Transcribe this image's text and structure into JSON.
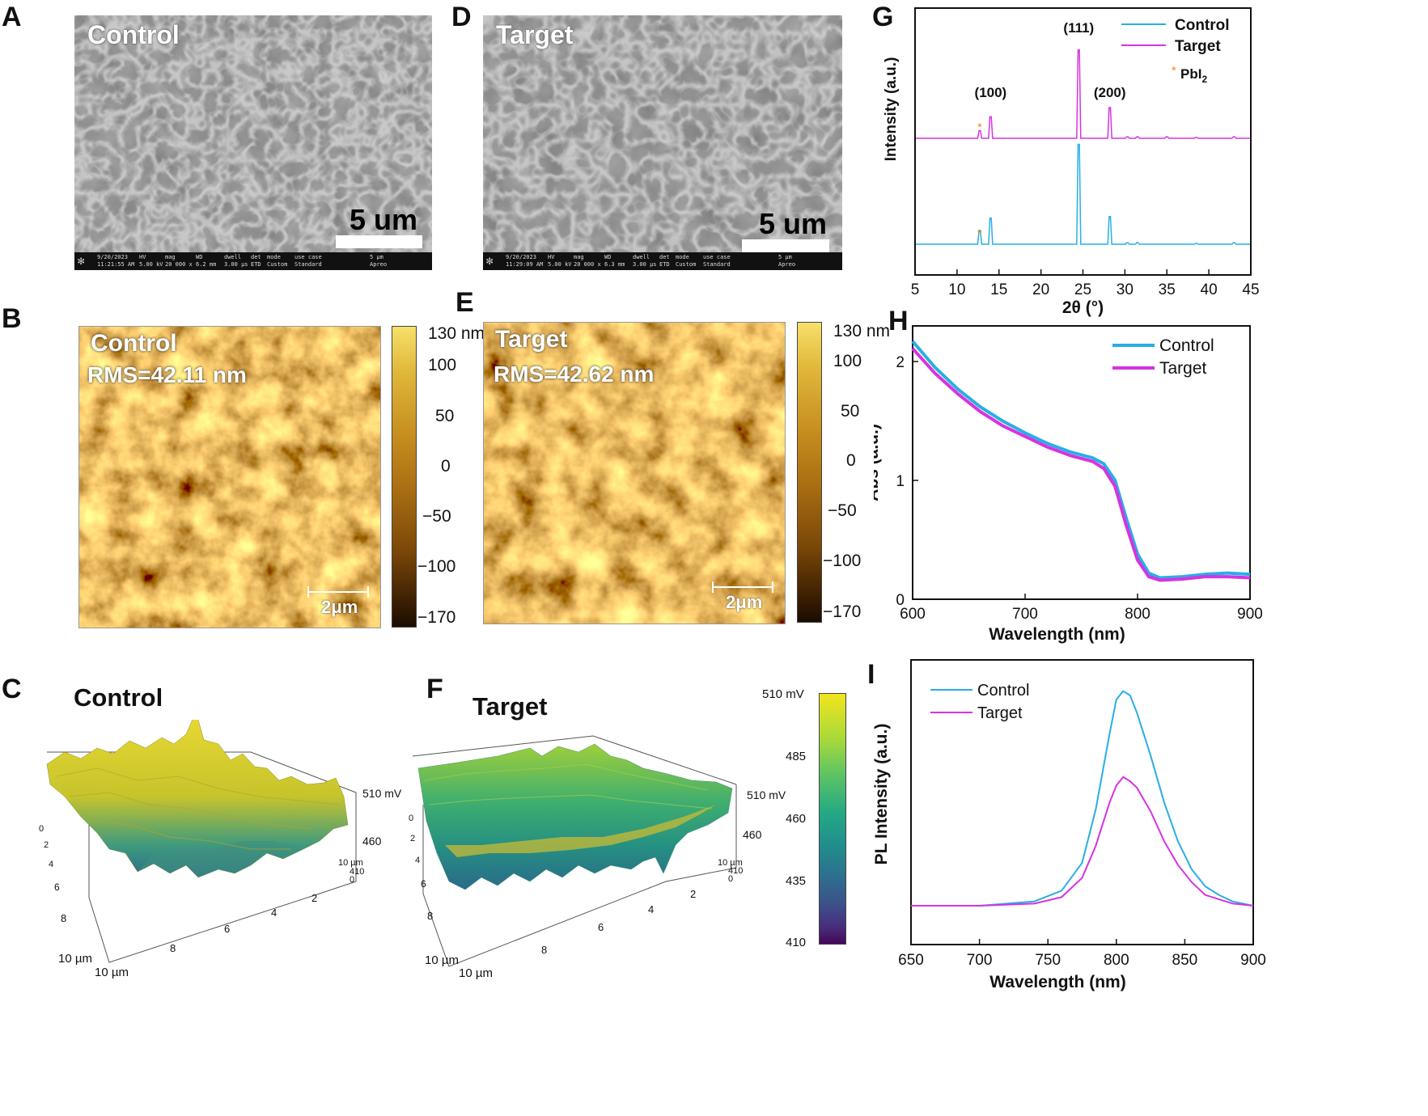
{
  "panels": {
    "A": {
      "letter": "A",
      "title": "Control",
      "scale_text": "5 um",
      "info": [
        "9/20/2023",
        "11:21:55 AM",
        "HV",
        "5.00 kV",
        "mag",
        "20 000 x",
        "WD",
        "6.2 mm",
        "dwell",
        "3.00 µs",
        "det",
        "ETD",
        "mode",
        "Custom",
        "use case",
        "Standard",
        "5 µm",
        "Apreo"
      ]
    },
    "D": {
      "letter": "D",
      "title": "Target",
      "scale_text": "5 um",
      "info": [
        "9/20/2023",
        "11:29:09 AM",
        "HV",
        "5.00 kV",
        "mag",
        "20 000 x",
        "WD",
        "6.3 mm",
        "dwell",
        "3.00 µs",
        "det",
        "ETD",
        "mode",
        "Custom",
        "use case",
        "Standard",
        "5 µm",
        "Apreo"
      ]
    },
    "B": {
      "letter": "B",
      "title": "Control",
      "rms": "RMS=42.11 nm",
      "scale": "2μm",
      "colorbar_ticks": [
        "130 nm",
        "100",
        "50",
        "0",
        "−50",
        "−100",
        "−170"
      ]
    },
    "E": {
      "letter": "E",
      "title": "Target",
      "rms": "RMS=42.62 nm",
      "scale": "2μm",
      "colorbar_ticks": [
        "130 nm",
        "100",
        "50",
        "0",
        "−50",
        "−100",
        "−170"
      ]
    },
    "C": {
      "letter": "C",
      "title": "Control",
      "axis_labels": {
        "z_top": "510 mV",
        "z_mid": "460",
        "z_low": "410",
        "x_unit": "10 µm",
        "y_unit": "10 µm",
        "y_end": "10 µm",
        "zero": "0"
      },
      "x_ticks": [
        "2",
        "4",
        "6",
        "8"
      ],
      "y_ticks": [
        "0",
        "2",
        "4",
        "6",
        "8"
      ]
    },
    "F": {
      "letter": "F",
      "title": "Target",
      "axis_labels": {
        "z_top": "510 mV",
        "z_mid": "460",
        "z_low": "410",
        "x_unit": "10 µm",
        "y_unit": "10 µm",
        "y_end": "10 µm",
        "zero": "0"
      },
      "x_ticks": [
        "2",
        "4",
        "6",
        "8"
      ],
      "y_ticks": [
        "0",
        "2",
        "4",
        "6",
        "8"
      ],
      "colorbar_ticks": [
        "510 mV",
        "485",
        "460",
        "435",
        "410"
      ]
    },
    "G": {
      "letter": "G"
    },
    "H": {
      "letter": "H"
    },
    "I": {
      "letter": "I"
    }
  },
  "colors": {
    "control": "#29aee6",
    "target": "#d633e0",
    "pbi2_marker": "#f08a20",
    "afm_light": "#f7e06a",
    "afm_dark": "#1a0d00",
    "viridis_top": "#f2e51c",
    "viridis_bottom": "#45075a"
  },
  "chart_data": [
    {
      "id": "G",
      "type": "line",
      "xlabel": "2θ (°)",
      "ylabel": "Intensity (a.u.)",
      "xlim": [
        5,
        45
      ],
      "x_ticks": [
        5,
        10,
        15,
        20,
        25,
        30,
        35,
        40,
        45
      ],
      "legend": [
        "Control",
        "Target"
      ],
      "legend_extra": "PbI",
      "legend_extra_sub": "2",
      "legend_position": "top-right",
      "peak_labels": [
        {
          "label": "(100)",
          "x": 14.0
        },
        {
          "label": "(111)",
          "x": 24.5
        },
        {
          "label": "(200)",
          "x": 28.2
        }
      ],
      "pbi2_marker_x": 12.7,
      "series": [
        {
          "name": "Control",
          "baseline": 0,
          "peaks": [
            [
              12.7,
              0.18
            ],
            [
              14.0,
              0.34
            ],
            [
              24.5,
              1.3
            ],
            [
              28.2,
              0.36
            ],
            [
              30.3,
              0.02
            ],
            [
              31.5,
              0.02
            ],
            [
              38.5,
              0.01
            ],
            [
              43.0,
              0.02
            ]
          ]
        },
        {
          "name": "Target",
          "baseline": 1,
          "peaks": [
            [
              12.7,
              0.1
            ],
            [
              14.0,
              0.28
            ],
            [
              24.5,
              1.15
            ],
            [
              28.2,
              0.4
            ],
            [
              30.3,
              0.02
            ],
            [
              31.5,
              0.02
            ],
            [
              35.0,
              0.02
            ],
            [
              38.5,
              0.01
            ],
            [
              43.0,
              0.02
            ]
          ]
        }
      ]
    },
    {
      "id": "H",
      "type": "line",
      "xlabel": "Wavelength (nm)",
      "ylabel": "Abs (a.u.)",
      "xlim": [
        600,
        900
      ],
      "ylim": [
        0,
        2.3
      ],
      "x_ticks": [
        600,
        700,
        800,
        900
      ],
      "y_ticks": [
        0,
        1,
        2
      ],
      "legend": [
        "Control",
        "Target"
      ],
      "legend_position": "top-right",
      "series": [
        {
          "name": "Control",
          "x": [
            600,
            620,
            640,
            660,
            680,
            700,
            720,
            740,
            760,
            770,
            780,
            790,
            800,
            810,
            820,
            840,
            860,
            880,
            900
          ],
          "y": [
            2.17,
            1.95,
            1.77,
            1.62,
            1.5,
            1.4,
            1.31,
            1.24,
            1.19,
            1.14,
            1.0,
            0.68,
            0.38,
            0.22,
            0.18,
            0.19,
            0.21,
            0.22,
            0.21
          ]
        },
        {
          "name": "Target",
          "x": [
            600,
            620,
            640,
            660,
            680,
            700,
            720,
            740,
            760,
            770,
            780,
            790,
            800,
            810,
            820,
            840,
            860,
            880,
            900
          ],
          "y": [
            2.11,
            1.9,
            1.73,
            1.58,
            1.46,
            1.37,
            1.28,
            1.21,
            1.16,
            1.1,
            0.95,
            0.62,
            0.33,
            0.19,
            0.16,
            0.17,
            0.19,
            0.19,
            0.18
          ]
        }
      ]
    },
    {
      "id": "I",
      "type": "line",
      "xlabel": "Wavelength (nm)",
      "ylabel": "PL Intensity (a.u.)",
      "xlim": [
        650,
        900
      ],
      "ylim": [
        0,
        1.1
      ],
      "x_ticks": [
        650,
        700,
        750,
        800,
        850,
        900
      ],
      "legend": [
        "Control",
        "Target"
      ],
      "legend_position": "top-left",
      "series": [
        {
          "name": "Control",
          "x": [
            650,
            700,
            740,
            760,
            775,
            785,
            795,
            800,
            805,
            810,
            815,
            825,
            835,
            845,
            855,
            865,
            875,
            885,
            900
          ],
          "y": [
            0.0,
            0.0,
            0.02,
            0.07,
            0.2,
            0.45,
            0.8,
            0.96,
            1.0,
            0.98,
            0.9,
            0.7,
            0.48,
            0.3,
            0.17,
            0.09,
            0.05,
            0.02,
            0.0
          ]
        },
        {
          "name": "Target",
          "x": [
            650,
            700,
            740,
            760,
            775,
            785,
            795,
            800,
            805,
            810,
            815,
            825,
            835,
            845,
            855,
            865,
            875,
            885,
            900
          ],
          "y": [
            0.0,
            0.0,
            0.01,
            0.04,
            0.13,
            0.28,
            0.48,
            0.56,
            0.6,
            0.58,
            0.55,
            0.44,
            0.3,
            0.19,
            0.11,
            0.05,
            0.03,
            0.01,
            0.0
          ]
        }
      ]
    }
  ]
}
